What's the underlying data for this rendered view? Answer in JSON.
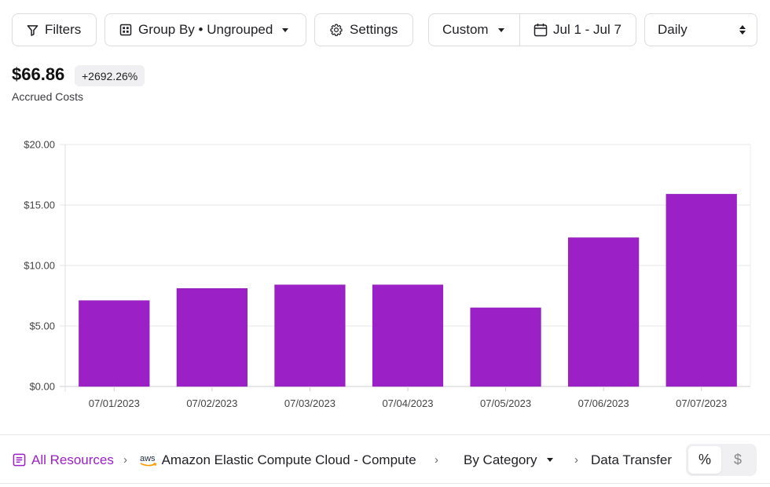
{
  "toolbar": {
    "filters_label": "Filters",
    "group_by_label": "Group By • Ungrouped",
    "settings_label": "Settings",
    "range_mode_label": "Custom",
    "date_range_label": "Jul 1 - Jul 7",
    "period_value": "Daily",
    "icons": {
      "filters": "filter-icon",
      "group_by": "grid-icon",
      "settings": "gear-icon",
      "date": "calendar-icon"
    }
  },
  "summary": {
    "amount": "$66.86",
    "change": "+2692.26%",
    "label": "Accrued Costs"
  },
  "chart_data": {
    "type": "bar",
    "title": "",
    "xlabel": "",
    "ylabel": "",
    "categories": [
      "07/01/2023",
      "07/02/2023",
      "07/03/2023",
      "07/04/2023",
      "07/05/2023",
      "07/06/2023",
      "07/07/2023"
    ],
    "values": [
      7.1,
      8.1,
      8.4,
      8.4,
      6.5,
      12.3,
      15.9
    ],
    "y_ticks": [
      0,
      5,
      10,
      15,
      20
    ],
    "y_tick_labels": [
      "$0.00",
      "$5.00",
      "$10.00",
      "$15.00",
      "$20.00"
    ],
    "ylim": [
      0,
      20
    ],
    "grid": true,
    "legend": "none",
    "bar_color": "#9b21c6"
  },
  "breadcrumb": {
    "root_label": "All Resources",
    "service_brand": "aws",
    "service_label": "Amazon Elastic Compute Cloud - Compute",
    "category_label": "By Category",
    "leaf_label": "Data Transfer",
    "root_icon": "list-icon",
    "separator_icon": "chevron-right-icon"
  },
  "value_toggle": {
    "options": [
      "%",
      "$"
    ],
    "selected": "%"
  },
  "colors": {
    "accent": "#9b21c6",
    "border": "#dcdce0",
    "badge_bg": "#f0f0f2"
  }
}
